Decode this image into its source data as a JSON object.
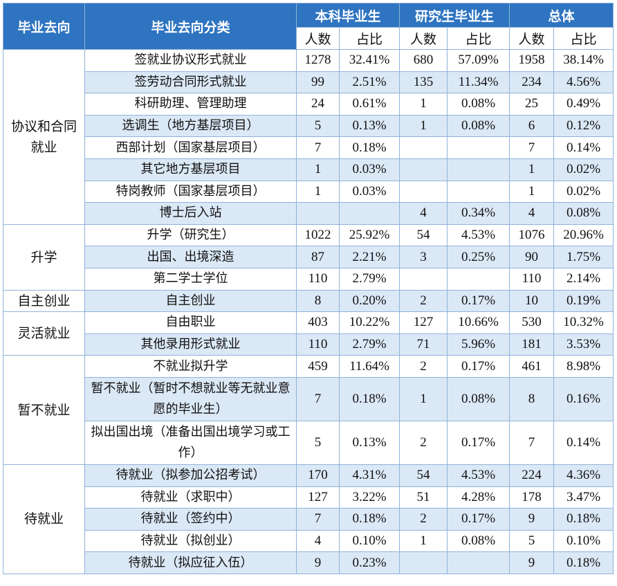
{
  "table": {
    "header": {
      "top": [
        "毕业去向",
        "毕业去向分类",
        "本科毕业生",
        "研究生毕业生",
        "总体"
      ],
      "sub": [
        "人数",
        "占比",
        "人数",
        "占比",
        "人数",
        "占比"
      ]
    },
    "groups": [
      {
        "name": "协议和合同就业",
        "rows": [
          {
            "label": "签就业协议形式就业",
            "cells": [
              "1278",
              "32.41%",
              "680",
              "57.09%",
              "1958",
              "38.14%"
            ]
          },
          {
            "label": "签劳动合同形式就业",
            "cells": [
              "99",
              "2.51%",
              "135",
              "11.34%",
              "234",
              "4.56%"
            ]
          },
          {
            "label": "科研助理、管理助理",
            "cells": [
              "24",
              "0.61%",
              "1",
              "0.08%",
              "25",
              "0.49%"
            ]
          },
          {
            "label": "选调生（地方基层项目）",
            "cells": [
              "5",
              "0.13%",
              "1",
              "0.08%",
              "6",
              "0.12%"
            ]
          },
          {
            "label": "西部计划（国家基层项目）",
            "cells": [
              "7",
              "0.18%",
              null,
              null,
              "7",
              "0.14%"
            ]
          },
          {
            "label": "其它地方基层项目",
            "cells": [
              "1",
              "0.03%",
              null,
              null,
              "1",
              "0.02%"
            ]
          },
          {
            "label": "特岗教师（国家基层项目）",
            "cells": [
              "1",
              "0.03%",
              null,
              null,
              "1",
              "0.02%"
            ]
          },
          {
            "label": "博士后入站",
            "cells": [
              null,
              null,
              "4",
              "0.34%",
              "4",
              "0.08%"
            ]
          }
        ]
      },
      {
        "name": "升学",
        "rows": [
          {
            "label": "升学（研究生）",
            "cells": [
              "1022",
              "25.92%",
              "54",
              "4.53%",
              "1076",
              "20.96%"
            ]
          },
          {
            "label": "出国、出境深造",
            "cells": [
              "87",
              "2.21%",
              "3",
              "0.25%",
              "90",
              "1.75%"
            ]
          },
          {
            "label": "第二学士学位",
            "cells": [
              "110",
              "2.79%",
              null,
              null,
              "110",
              "2.14%"
            ]
          }
        ]
      },
      {
        "name": "自主创业",
        "rows": [
          {
            "label": "自主创业",
            "cells": [
              "8",
              "0.20%",
              "2",
              "0.17%",
              "10",
              "0.19%"
            ]
          }
        ]
      },
      {
        "name": "灵活就业",
        "rows": [
          {
            "label": "自由职业",
            "cells": [
              "403",
              "10.22%",
              "127",
              "10.66%",
              "530",
              "10.32%"
            ]
          },
          {
            "label": "其他录用形式就业",
            "cells": [
              "110",
              "2.79%",
              "71",
              "5.96%",
              "181",
              "3.53%"
            ]
          }
        ]
      },
      {
        "name": "暂不就业",
        "rows": [
          {
            "label": "不就业拟升学",
            "cells": [
              "459",
              "11.64%",
              "2",
              "0.17%",
              "461",
              "8.98%"
            ]
          },
          {
            "label": "暂不就业（暂时不想就业等无就业意愿的毕业生）",
            "cells": [
              "7",
              "0.18%",
              "1",
              "0.08%",
              "8",
              "0.16%"
            ]
          },
          {
            "label": "拟出国出境（准备出国出境学习或工作）",
            "cells": [
              "5",
              "0.13%",
              "2",
              "0.17%",
              "7",
              "0.14%"
            ]
          }
        ]
      },
      {
        "name": "待就业",
        "rows": [
          {
            "label": "待就业（拟参加公招考试）",
            "cells": [
              "170",
              "4.31%",
              "54",
              "4.53%",
              "224",
              "4.36%"
            ]
          },
          {
            "label": "待就业（求职中）",
            "cells": [
              "127",
              "3.22%",
              "51",
              "4.28%",
              "178",
              "3.47%"
            ]
          },
          {
            "label": "待就业（签约中）",
            "cells": [
              "7",
              "0.18%",
              "2",
              "0.17%",
              "9",
              "0.18%"
            ]
          },
          {
            "label": "待就业（拟创业）",
            "cells": [
              "4",
              "0.10%",
              "1",
              "0.08%",
              "5",
              "0.10%"
            ]
          },
          {
            "label": "待就业（拟应征入伍）",
            "cells": [
              "9",
              "0.23%",
              null,
              null,
              "9",
              "0.18%"
            ]
          }
        ]
      }
    ]
  }
}
